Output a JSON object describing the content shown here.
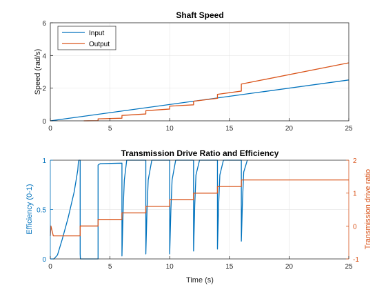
{
  "colors": {
    "input": "#0072BD",
    "output": "#D95319",
    "axis": "#262626",
    "grid": "#E6E6E6"
  },
  "chart_data": [
    {
      "type": "line",
      "title": "Shaft Speed",
      "xlabel": "",
      "ylabel": "Speed (rad/s)",
      "xlim": [
        0,
        25
      ],
      "ylim": [
        0,
        6
      ],
      "xticks": [
        "0",
        "5",
        "10",
        "15",
        "20",
        "25"
      ],
      "yticks": [
        "0",
        "2",
        "4",
        "6"
      ],
      "grid": true,
      "legend": {
        "position": "top-left",
        "entries": [
          "Input",
          "Output"
        ]
      },
      "series": [
        {
          "name": "Input",
          "color": "input",
          "x": [
            0,
            25
          ],
          "y": [
            0,
            2.5
          ]
        },
        {
          "name": "Output",
          "color": "output",
          "x": [
            2.8,
            4.0,
            4.0,
            6.0,
            6.0,
            8.0,
            8.0,
            10.0,
            10.0,
            12.0,
            12.0,
            14.0,
            14.0,
            16.0,
            16.0,
            25.0
          ],
          "y": [
            0.0,
            0.01,
            0.12,
            0.16,
            0.33,
            0.42,
            0.62,
            0.72,
            0.9,
            0.98,
            1.2,
            1.38,
            1.62,
            1.82,
            2.25,
            3.55
          ]
        }
      ]
    },
    {
      "type": "line",
      "title": "Transmission Drive Ratio and Efficiency",
      "xlabel": "Time (s)",
      "ylabel_left": "Efficiency (0-1)",
      "ylabel_right": "Transmission drive ratio",
      "xlim": [
        0,
        25
      ],
      "ylim_left": [
        0,
        1
      ],
      "ylim_right": [
        -1,
        2
      ],
      "xticks": [
        "0",
        "5",
        "10",
        "15",
        "20",
        "25"
      ],
      "yticks_left": [
        "0",
        "0.5",
        "1"
      ],
      "yticks_right": [
        "-1",
        "0",
        "1",
        "2"
      ],
      "grid": true,
      "series": [
        {
          "name": "Efficiency",
          "axis": "left",
          "color": "input",
          "x": [
            0.0,
            0.3,
            0.6,
            1.0,
            1.5,
            2.0,
            2.3,
            2.35,
            2.4,
            2.45,
            2.5,
            2.5,
            2.52,
            4.0,
            4.0,
            4.1,
            4.2,
            6.0,
            6.0,
            6.1,
            6.2,
            6.4,
            8.0,
            8.0,
            8.1,
            8.2,
            8.5,
            10.0,
            10.0,
            10.1,
            10.2,
            10.5,
            12.0,
            12.0,
            12.1,
            12.2,
            12.5,
            14.0,
            14.0,
            14.1,
            14.2,
            14.5,
            16.0,
            16.0,
            16.1,
            16.2,
            16.5
          ],
          "y": [
            0.0,
            0.0,
            0.04,
            0.2,
            0.42,
            0.68,
            0.9,
            0.98,
            1.0,
            1.0,
            1.0,
            0.05,
            0.0,
            0.0,
            0.95,
            0.96,
            0.965,
            0.97,
            0.03,
            0.5,
            0.8,
            1.0,
            1.0,
            0.05,
            0.5,
            0.8,
            1.0,
            1.0,
            0.05,
            0.5,
            0.8,
            1.0,
            1.0,
            0.08,
            0.55,
            0.85,
            1.0,
            1.0,
            0.1,
            0.55,
            0.85,
            1.0,
            1.0,
            0.18,
            0.6,
            0.88,
            1.0
          ]
        },
        {
          "name": "Drive ratio",
          "axis": "right",
          "color": "output",
          "x": [
            0.0,
            0.05,
            0.15,
            0.25,
            2.5,
            2.5,
            4.0,
            4.0,
            6.0,
            6.0,
            8.0,
            8.0,
            10.0,
            10.0,
            12.0,
            12.0,
            14.0,
            14.0,
            16.0,
            16.0,
            25.0
          ],
          "y": [
            -0.3,
            0.0,
            -0.15,
            -0.3,
            -0.3,
            0.0,
            0.0,
            0.2,
            0.2,
            0.4,
            0.4,
            0.6,
            0.6,
            0.8,
            0.8,
            1.0,
            1.0,
            1.2,
            1.2,
            1.4,
            1.4
          ]
        }
      ]
    }
  ]
}
